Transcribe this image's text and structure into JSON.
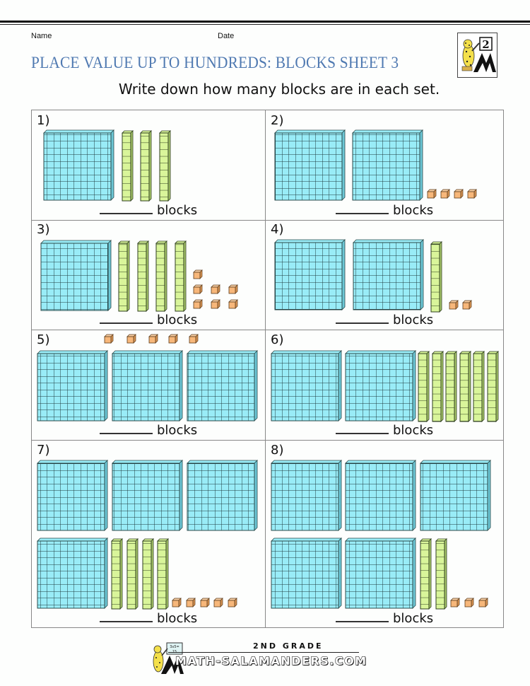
{
  "header": {
    "name_label": "Name",
    "date_label": "Date",
    "title": "PLACE VALUE UP TO HUNDREDS: BLOCKS SHEET 3",
    "instruction": "Write down how many blocks are in each set.",
    "logo_grade": "2"
  },
  "colors": {
    "title": "#4f79b1",
    "hundred_block": "#99ecf7",
    "ten_rod": "#d9f59a",
    "unit_cube": "#f7b77a",
    "outline": "#2a4a4a"
  },
  "questions": [
    {
      "number": "1)",
      "hundreds": 1,
      "tens": 3,
      "ones": 0,
      "answer_suffix": "blocks"
    },
    {
      "number": "2)",
      "hundreds": 2,
      "tens": 0,
      "ones": 4,
      "answer_suffix": "blocks"
    },
    {
      "number": "3)",
      "hundreds": 1,
      "tens": 4,
      "ones": 7,
      "answer_suffix": "blocks"
    },
    {
      "number": "4)",
      "hundreds": 2,
      "tens": 1,
      "ones": 2,
      "answer_suffix": "blocks"
    },
    {
      "number": "5)",
      "hundreds": 3,
      "tens": 0,
      "ones": 5,
      "answer_suffix": "blocks"
    },
    {
      "number": "6)",
      "hundreds": 2,
      "tens": 6,
      "ones": 0,
      "answer_suffix": "blocks"
    },
    {
      "number": "7)",
      "hundreds": 4,
      "tens": 4,
      "ones": 5,
      "answer_suffix": "blocks"
    },
    {
      "number": "8)",
      "hundreds": 5,
      "tens": 2,
      "ones": 3,
      "answer_suffix": "blocks"
    }
  ],
  "footer": {
    "grade": "2ND GRADE",
    "site": "MATH-SALAMANDERS.COM",
    "board_text": "3x5=15"
  }
}
